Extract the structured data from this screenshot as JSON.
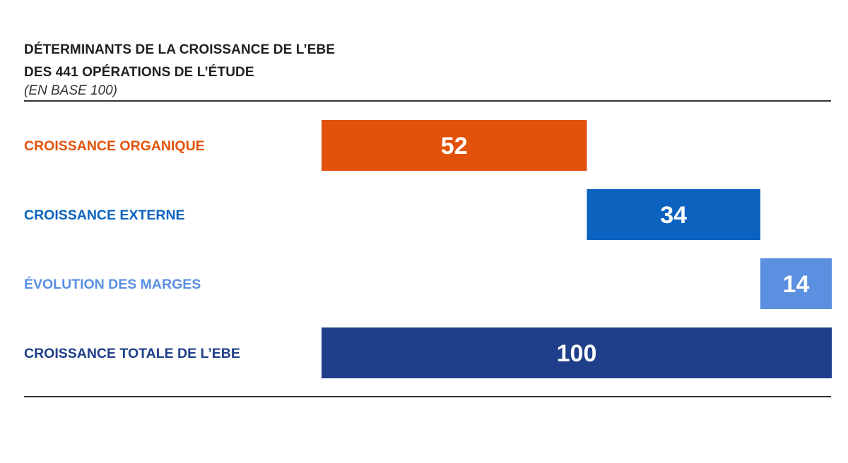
{
  "header": {
    "title_line1": "DÉTERMINANTS DE LA CROISSANCE DE L’EBE",
    "title_line2": "DES 441 OPÉRATIONS DE L’ÉTUDE",
    "subtitle": "(EN BASE 100)"
  },
  "chart_data": {
    "type": "bar",
    "orientation": "horizontal-waterfall",
    "categories": [
      "CROISSANCE ORGANIQUE",
      "CROISSANCE EXTERNE",
      "ÉVOLUTION DES MARGES",
      "CROISSANCE TOTALE DE L’EBE"
    ],
    "values": [
      52,
      34,
      14,
      100
    ],
    "starts": [
      0,
      52,
      86,
      0
    ],
    "colors": [
      "#e2520a",
      "#0b63bf",
      "#5b8fe0",
      "#1f3f8a"
    ],
    "label_colors": [
      "#e2520a",
      "#0b63bf",
      "#5b8fe0",
      "#1f3f8a"
    ],
    "xlim": [
      0,
      100
    ],
    "grid": false,
    "legend": "none"
  }
}
